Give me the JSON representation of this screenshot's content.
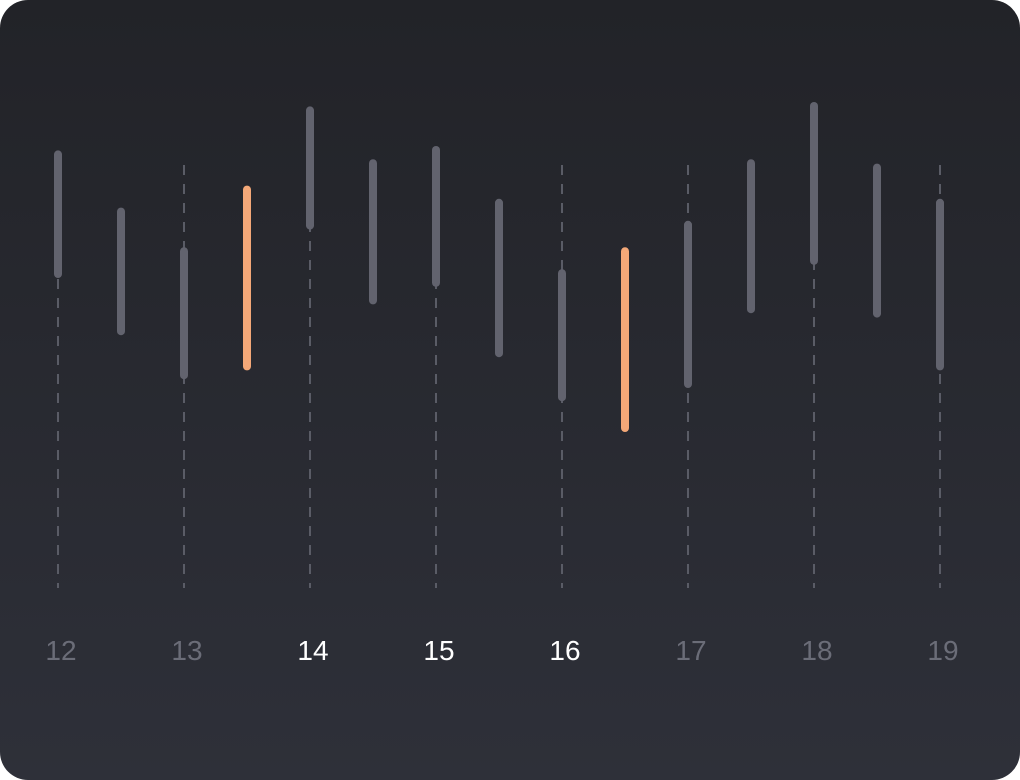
{
  "chart_data": {
    "type": "range_bar",
    "x_ticks": [
      {
        "label": "12",
        "highlighted": false
      },
      {
        "label": "13",
        "highlighted": false
      },
      {
        "label": "14",
        "highlighted": true
      },
      {
        "label": "15",
        "highlighted": true
      },
      {
        "label": "16",
        "highlighted": true
      },
      {
        "label": "17",
        "highlighted": false
      },
      {
        "label": "18",
        "highlighted": false
      },
      {
        "label": "19",
        "highlighted": false
      }
    ],
    "x_range": [
      12,
      19
    ],
    "y_range": [
      0,
      100
    ],
    "grid": "vertical dashed lines at each tick",
    "bars": [
      {
        "x": 12.0,
        "low": 55,
        "high": 84,
        "highlight": false
      },
      {
        "x": 12.5,
        "low": 42,
        "high": 71,
        "highlight": false
      },
      {
        "x": 13.0,
        "low": 32,
        "high": 62,
        "highlight": false
      },
      {
        "x": 13.5,
        "low": 34,
        "high": 76,
        "highlight": true
      },
      {
        "x": 14.0,
        "low": 66,
        "high": 94,
        "highlight": false
      },
      {
        "x": 14.5,
        "low": 49,
        "high": 82,
        "highlight": false
      },
      {
        "x": 15.0,
        "low": 53,
        "high": 85,
        "highlight": false
      },
      {
        "x": 15.5,
        "low": 37,
        "high": 73,
        "highlight": false
      },
      {
        "x": 16.0,
        "low": 27,
        "high": 57,
        "highlight": false
      },
      {
        "x": 16.5,
        "low": 20,
        "high": 62,
        "highlight": true
      },
      {
        "x": 17.0,
        "low": 30,
        "high": 68,
        "highlight": false
      },
      {
        "x": 17.5,
        "low": 47,
        "high": 82,
        "highlight": false
      },
      {
        "x": 18.0,
        "low": 58,
        "high": 95,
        "highlight": false
      },
      {
        "x": 18.5,
        "low": 46,
        "high": 81,
        "highlight": false
      },
      {
        "x": 19.0,
        "low": 34,
        "high": 73,
        "highlight": false
      }
    ]
  },
  "colors": {
    "background_top": "#222328",
    "background_bottom": "#2e3039",
    "bar": "#62636e",
    "bar_highlight": "#f4a878",
    "grid": "#5a5c66",
    "label_muted": "#6b6d78",
    "label_active": "#ffffff"
  }
}
